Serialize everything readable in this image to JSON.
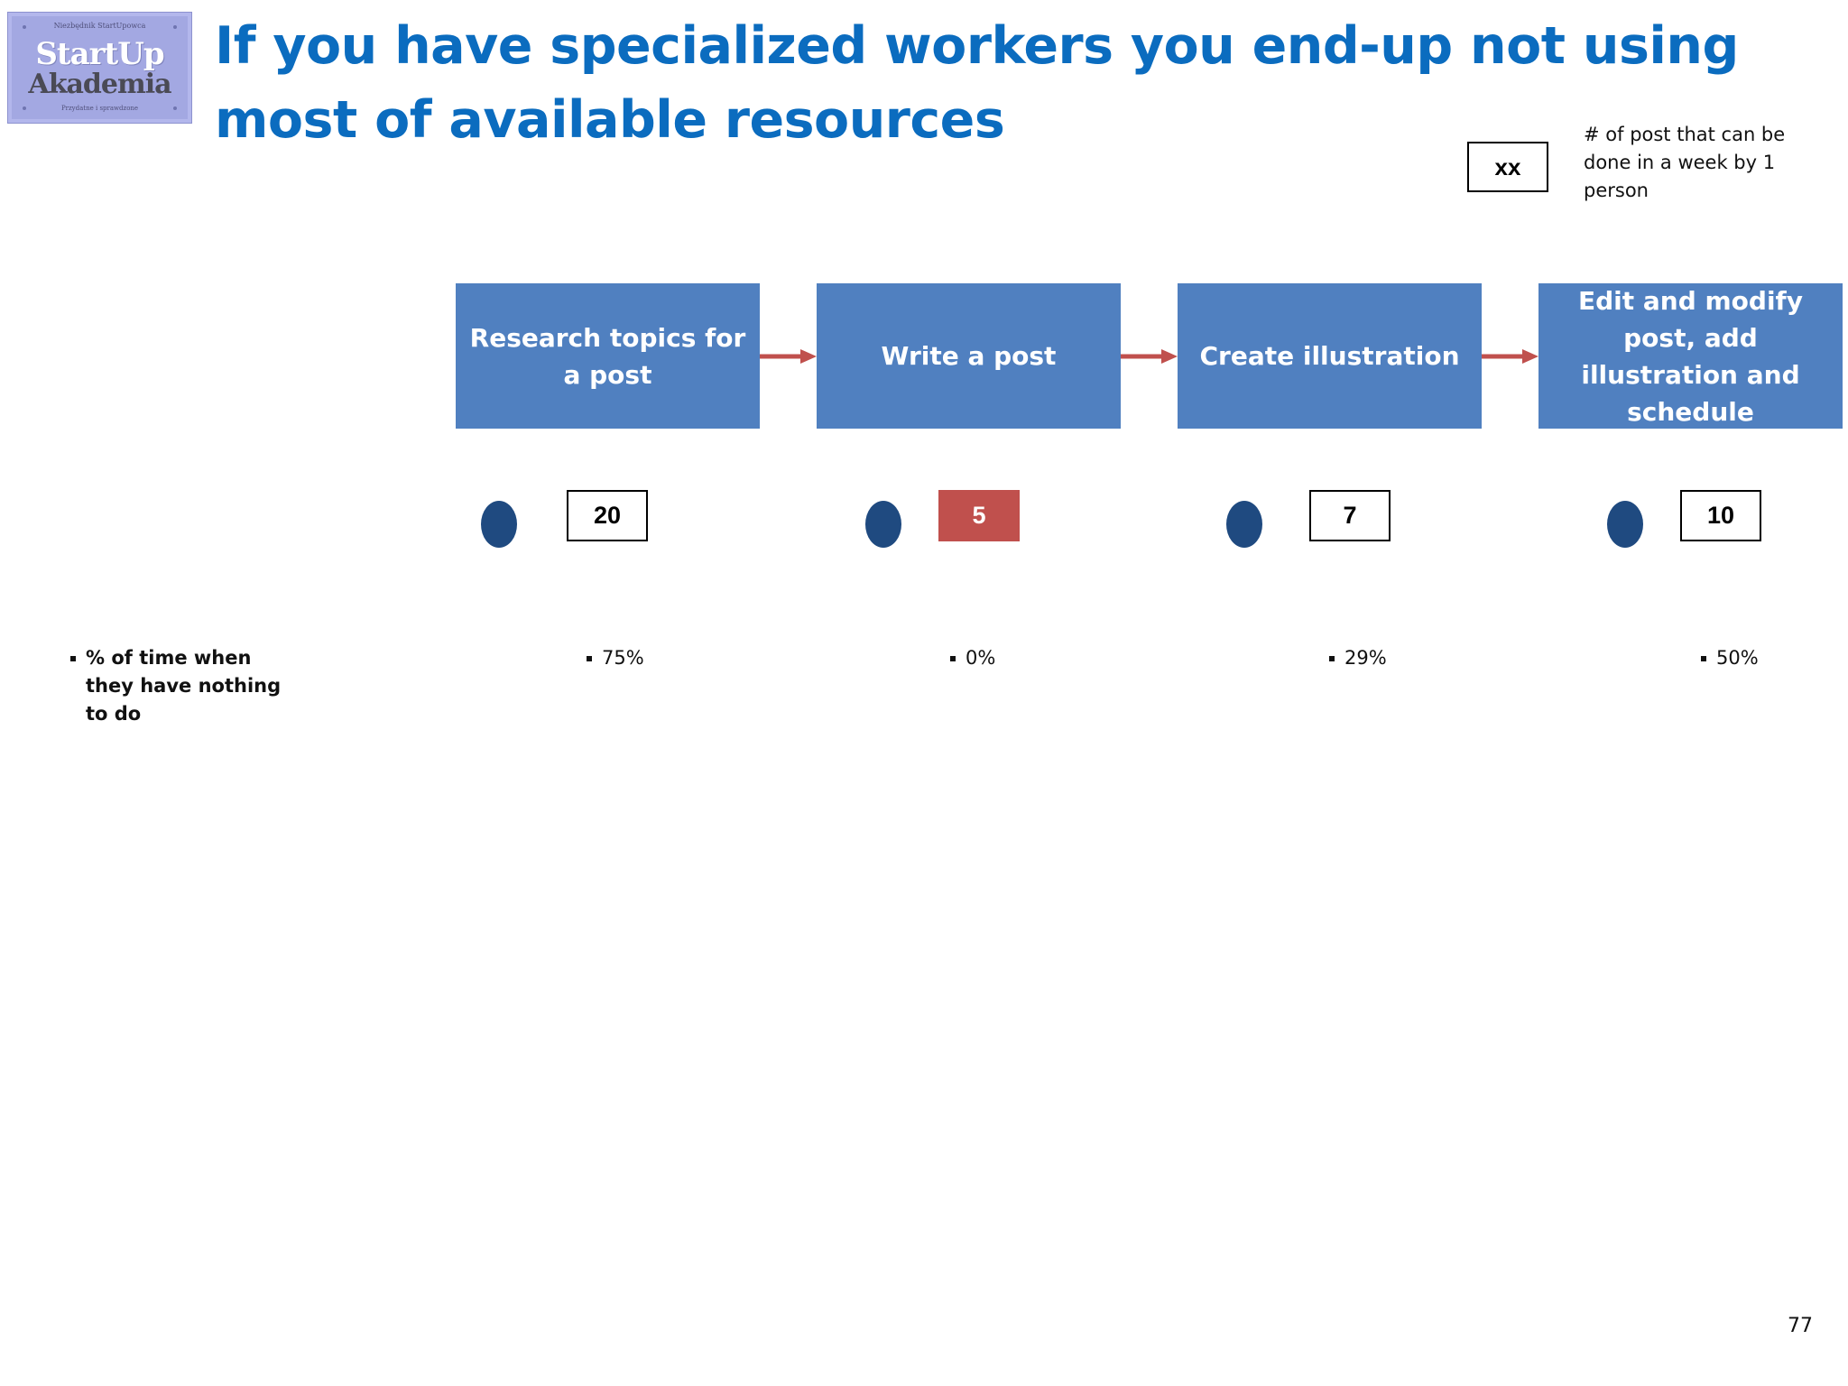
{
  "logo": {
    "top_text": "Niezbędnik StartUpowca",
    "line1": "StartUp",
    "line2": "Akademia",
    "bottom_text": "Przydatne i sprawdzone"
  },
  "title": "If you have specialized workers you end-up not using most of available resources",
  "legend": {
    "box_label": "xx",
    "description": "# of post that can be done in a week by 1 person"
  },
  "steps": [
    {
      "label": "Research topics for a post",
      "capacity": "20",
      "idle": "75%"
    },
    {
      "label": "Write a post",
      "capacity": "5",
      "idle": "0%"
    },
    {
      "label": "Create illustration",
      "capacity": "7",
      "idle": "29%"
    },
    {
      "label": "Edit and modify post, add illustration and schedule",
      "capacity": "10",
      "idle": "50%"
    }
  ],
  "idle_row_label": "% of time when they have nothing to do",
  "colors": {
    "title": "#0b6cbf",
    "step_fill": "#5080c0",
    "arrow": "#c0504d",
    "worker": "#1f4a80",
    "bottleneck": "#c0504d"
  },
  "page_number": "77"
}
